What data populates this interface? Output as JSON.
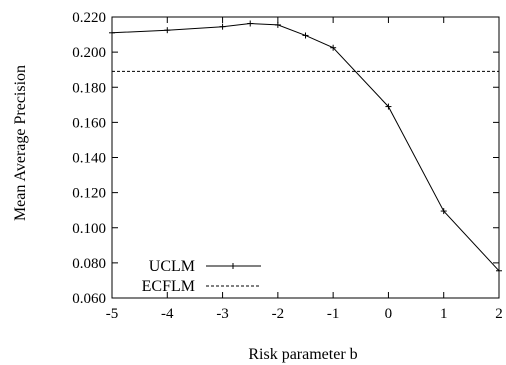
{
  "chart_data": {
    "type": "line",
    "title": "",
    "xlabel": "Risk parameter b",
    "ylabel": "Mean Average Precision",
    "xlim": [
      -5,
      2
    ],
    "ylim": [
      0.06,
      0.22
    ],
    "xticks": [
      -5,
      -4,
      -3,
      -2,
      -1,
      0,
      1,
      2
    ],
    "xtick_labels": [
      "-5",
      "-4",
      "-3",
      "-2",
      "-1",
      "0",
      "1",
      "2"
    ],
    "yticks": [
      0.06,
      0.08,
      0.1,
      0.12,
      0.14,
      0.16,
      0.18,
      0.2,
      0.22
    ],
    "ytick_labels": [
      "0.060",
      "0.080",
      "0.100",
      "0.120",
      "0.140",
      "0.160",
      "0.180",
      "0.200",
      "0.220"
    ],
    "grid": false,
    "legend_position": "bottom-left",
    "series": [
      {
        "name": "UCLM",
        "style": "solid-with-markers",
        "color": "#000000",
        "x": [
          -5,
          -4,
          -3,
          -2.5,
          -2,
          -1.5,
          -1,
          0,
          1,
          2
        ],
        "y": [
          0.211,
          0.2125,
          0.2145,
          0.2163,
          0.2155,
          0.2095,
          0.2025,
          0.169,
          0.1095,
          0.0755
        ]
      },
      {
        "name": "ECFLM",
        "style": "dashed",
        "color": "#000000",
        "x": [
          -5,
          2
        ],
        "y": [
          0.189,
          0.189
        ]
      }
    ]
  }
}
